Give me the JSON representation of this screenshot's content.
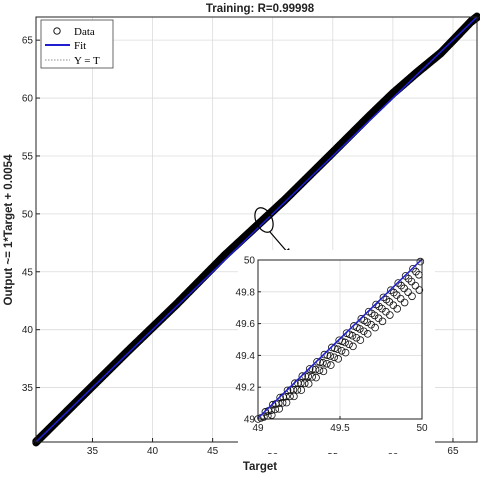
{
  "chart_data": {
    "type": "scatter",
    "title": "Training: R=0.99998",
    "xlabel": "Target",
    "ylabel": "Output ~= 1*Target + 0.0054",
    "xlim": [
      30.3,
      67.0
    ],
    "ylim": [
      30.3,
      67.0
    ],
    "xticks": [
      35,
      40,
      45,
      50,
      55,
      60,
      65
    ],
    "yticks": [
      35,
      40,
      45,
      50,
      55,
      60,
      65
    ],
    "grid": true,
    "legend_position": "top-left",
    "legend": [
      "Data",
      "Fit",
      "Y = T"
    ],
    "colors": {
      "data": "#000000",
      "fit": "#1f1fd0",
      "yt": "#8c8c8c",
      "grid": "#dcdcdc"
    },
    "data_curve_points": [
      [
        30.3,
        30.3
      ],
      [
        34.0,
        34.1
      ],
      [
        38.0,
        38.2
      ],
      [
        42.0,
        42.2
      ],
      [
        46.0,
        46.4
      ],
      [
        48.5,
        48.8
      ],
      [
        51.0,
        51.2
      ],
      [
        55.0,
        55.3
      ],
      [
        58.0,
        58.4
      ],
      [
        60.0,
        60.4
      ],
      [
        62.0,
        62.2
      ],
      [
        64.0,
        63.9
      ],
      [
        65.3,
        65.3
      ],
      [
        66.5,
        66.6
      ],
      [
        67.0,
        67.0
      ]
    ],
    "fit": {
      "slope": 1,
      "intercept": 0.0054
    },
    "inset": {
      "xlim": [
        49,
        50
      ],
      "ylim": [
        49,
        50
      ],
      "xticks": [
        49,
        49.5,
        50
      ],
      "yticks": [
        49,
        49.2,
        49.4,
        49.6,
        49.8,
        50
      ],
      "xticklabels": [
        "49",
        "49.5",
        "50"
      ],
      "yticklabels": [
        "49",
        "49.2",
        "49.4",
        "49.6",
        "49.8",
        "50"
      ]
    }
  }
}
